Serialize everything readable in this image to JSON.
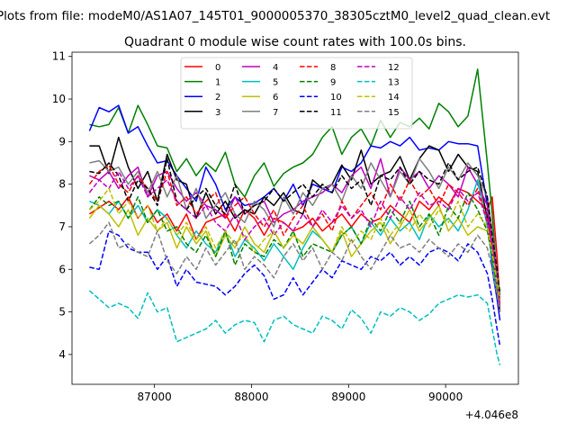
{
  "figure": {
    "suptitle": "Plots from file: modeM0/AS1A07_145T01_9000005370_38305cztM0_level2_quad_clean.evt"
  },
  "chart_data": {
    "type": "line",
    "title": "Quadrant 0 module wise count rates with 100.0s bins.",
    "xlabel": "",
    "ylabel": "",
    "x_offset_label": "+4.046e8",
    "xlim": [
      86150,
      90750
    ],
    "ylim": [
      3.3,
      11.1
    ],
    "xticks": [
      87000,
      88000,
      89000,
      90000
    ],
    "xtick_labels": [
      "87000",
      "88000",
      "89000",
      "90000"
    ],
    "yticks": [
      4,
      5,
      6,
      7,
      8,
      9,
      10,
      11
    ],
    "ytick_labels": [
      "4",
      "5",
      "6",
      "7",
      "8",
      "9",
      "10",
      "11"
    ],
    "legend": {
      "placement": "top-center",
      "columns": 4
    },
    "x": [
      86330,
      86430,
      86530,
      86630,
      86730,
      86830,
      86930,
      87030,
      87130,
      87230,
      87330,
      87430,
      87530,
      87630,
      87730,
      87830,
      87930,
      88030,
      88130,
      88230,
      88330,
      88430,
      88530,
      88630,
      88730,
      88830,
      88930,
      89030,
      89130,
      89230,
      89330,
      89430,
      89530,
      89630,
      89730,
      89830,
      89930,
      90030,
      90130,
      90230,
      90330,
      90430,
      90480,
      90530,
      90560
    ],
    "series": [
      {
        "name": "0",
        "color": "#ff0000",
        "dash": "solid",
        "values": [
          7.3,
          7.45,
          7.6,
          7.4,
          7.7,
          7.2,
          7.5,
          7.1,
          7.3,
          6.9,
          7.3,
          6.7,
          7.1,
          7.2,
          7.3,
          6.9,
          7.4,
          7.2,
          6.8,
          7.2,
          7.1,
          6.9,
          7.0,
          7.2,
          6.9,
          7.1,
          7.3,
          7.0,
          7.3,
          7.1,
          7.2,
          7.5,
          7.3,
          7.1,
          7.6,
          7.4,
          7.7,
          7.5,
          7.9,
          7.8,
          7.6,
          7.4,
          7.7,
          6.3,
          5.2
        ]
      },
      {
        "name": "1",
        "color": "#008000",
        "dash": "solid",
        "values": [
          9.4,
          9.35,
          9.4,
          9.8,
          9.2,
          9.85,
          9.4,
          8.9,
          8.85,
          8.3,
          8.6,
          8.2,
          8.5,
          8.3,
          8.75,
          8.0,
          7.7,
          8.2,
          8.5,
          7.95,
          8.25,
          8.4,
          8.5,
          8.7,
          9.1,
          9.35,
          8.7,
          9.1,
          9.3,
          8.9,
          9.5,
          9.1,
          9.45,
          9.35,
          9.55,
          9.3,
          9.9,
          9.7,
          9.35,
          9.6,
          10.7,
          8.5,
          7.3,
          5.8,
          5.5
        ]
      },
      {
        "name": "2",
        "color": "#0000ff",
        "dash": "solid",
        "values": [
          9.25,
          9.8,
          9.7,
          9.85,
          9.2,
          9.35,
          8.9,
          8.5,
          8.55,
          8.2,
          7.9,
          7.6,
          8.4,
          8.0,
          7.4,
          7.7,
          7.5,
          7.55,
          7.7,
          7.9,
          7.6,
          8.0,
          7.5,
          8.0,
          7.9,
          7.8,
          8.4,
          8.3,
          8.5,
          8.9,
          8.85,
          9.0,
          8.9,
          9.1,
          8.8,
          8.85,
          8.8,
          9.0,
          8.95,
          8.95,
          8.9,
          7.5,
          6.0,
          5.3,
          4.8
        ]
      },
      {
        "name": "3",
        "color": "#000000",
        "dash": "solid",
        "values": [
          8.9,
          8.9,
          8.25,
          9.1,
          8.4,
          7.9,
          8.3,
          7.6,
          8.7,
          8.1,
          8.0,
          7.2,
          7.8,
          7.3,
          7.6,
          7.2,
          7.4,
          7.3,
          7.7,
          7.5,
          7.8,
          7.4,
          7.3,
          8.1,
          7.9,
          8.0,
          8.45,
          8.1,
          8.8,
          8.0,
          8.2,
          8.3,
          8.65,
          8.1,
          8.6,
          8.9,
          8.8,
          8.3,
          8.7,
          8.4,
          8.3,
          7.2,
          6.4,
          5.7,
          5.0
        ]
      },
      {
        "name": "4",
        "color": "#bf00bf",
        "dash": "solid",
        "values": [
          8.2,
          8.1,
          8.3,
          7.9,
          8.2,
          8.4,
          7.7,
          8.2,
          8.3,
          7.9,
          7.6,
          7.8,
          7.5,
          7.4,
          7.2,
          7.7,
          7.3,
          7.5,
          7.6,
          7.1,
          7.3,
          7.4,
          7.6,
          7.7,
          7.8,
          8.0,
          7.8,
          8.2,
          8.4,
          7.9,
          8.6,
          7.7,
          8.4,
          8.1,
          8.3,
          7.9,
          8.2,
          8.0,
          7.7,
          8.4,
          8.0,
          7.5,
          6.6,
          5.8,
          5.4
        ]
      },
      {
        "name": "5",
        "color": "#00bfbf",
        "dash": "solid",
        "values": [
          7.6,
          7.5,
          7.3,
          7.6,
          7.2,
          7.5,
          7.1,
          7.4,
          7.2,
          6.8,
          6.5,
          6.9,
          6.6,
          6.4,
          6.9,
          6.3,
          6.7,
          6.5,
          6.2,
          6.6,
          6.3,
          6.0,
          6.5,
          6.9,
          6.7,
          6.4,
          6.8,
          7.0,
          6.6,
          7.1,
          6.8,
          7.2,
          6.9,
          7.1,
          6.7,
          7.3,
          7.0,
          7.2,
          6.9,
          7.4,
          8.1,
          7.0,
          6.2,
          5.5,
          5.1
        ]
      },
      {
        "name": "6",
        "color": "#bfbf00",
        "dash": "solid",
        "values": [
          7.2,
          7.5,
          7.3,
          7.0,
          7.4,
          6.8,
          7.2,
          6.9,
          7.1,
          6.5,
          7.0,
          6.6,
          6.9,
          6.3,
          6.8,
          6.5,
          7.0,
          6.6,
          6.4,
          6.9,
          6.5,
          6.8,
          6.6,
          7.0,
          6.7,
          6.4,
          6.9,
          6.3,
          6.6,
          6.9,
          7.1,
          6.6,
          7.0,
          7.4,
          6.9,
          7.2,
          7.5,
          6.9,
          7.2,
          6.8,
          7.0,
          6.9,
          6.4,
          5.6,
          5.2
        ]
      },
      {
        "name": "7",
        "color": "#7f7f7f",
        "dash": "solid",
        "values": [
          8.5,
          8.55,
          8.3,
          8.4,
          8.0,
          8.3,
          7.8,
          8.3,
          7.7,
          8.2,
          7.4,
          7.9,
          7.2,
          7.5,
          7.8,
          7.3,
          7.1,
          7.6,
          7.4,
          7.0,
          7.7,
          7.3,
          7.8,
          7.5,
          7.9,
          8.0,
          7.6,
          8.2,
          7.9,
          8.5,
          8.1,
          7.7,
          8.3,
          8.0,
          8.6,
          8.3,
          7.9,
          8.4,
          8.1,
          8.5,
          8.2,
          7.7,
          6.9,
          6.0,
          5.3
        ]
      },
      {
        "name": "8",
        "color": "#ff0000",
        "dash": "dashed",
        "values": [
          8.0,
          8.3,
          8.45,
          8.0,
          7.8,
          8.2,
          7.9,
          7.6,
          8.3,
          7.5,
          7.7,
          7.3,
          7.6,
          7.8,
          7.2,
          7.5,
          7.7,
          7.3,
          7.0,
          7.4,
          6.8,
          7.2,
          7.5,
          7.0,
          7.3,
          6.9,
          7.6,
          7.2,
          7.5,
          7.8,
          7.4,
          8.0,
          7.6,
          8.1,
          7.7,
          7.9,
          7.5,
          8.0,
          7.8,
          7.5,
          7.9,
          7.2,
          6.5,
          5.7,
          5.0
        ]
      },
      {
        "name": "9",
        "color": "#008000",
        "dash": "dashed",
        "values": [
          7.4,
          7.7,
          7.5,
          7.6,
          7.2,
          7.7,
          7.1,
          7.4,
          6.9,
          7.0,
          6.6,
          6.4,
          6.8,
          6.3,
          6.9,
          6.1,
          6.6,
          6.4,
          6.3,
          6.7,
          6.5,
          6.9,
          6.3,
          6.6,
          6.5,
          6.4,
          6.8,
          7.0,
          6.6,
          7.2,
          6.9,
          7.4,
          7.1,
          7.6,
          7.0,
          7.3,
          6.8,
          7.5,
          7.2,
          7.8,
          7.4,
          6.9,
          6.3,
          5.6,
          5.3
        ]
      },
      {
        "name": "10",
        "color": "#0000ff",
        "dash": "dashed",
        "values": [
          6.05,
          6.0,
          6.9,
          6.8,
          6.5,
          6.4,
          6.4,
          6.0,
          6.3,
          5.6,
          6.0,
          5.7,
          5.65,
          5.6,
          5.4,
          5.6,
          5.9,
          6.1,
          5.85,
          5.3,
          5.4,
          5.8,
          5.4,
          5.7,
          6.0,
          5.8,
          6.2,
          6.1,
          6.0,
          6.3,
          6.2,
          6.4,
          6.1,
          6.3,
          6.1,
          6.4,
          6.5,
          6.4,
          6.2,
          6.6,
          6.4,
          5.9,
          5.3,
          4.6,
          4.2
        ]
      },
      {
        "name": "11",
        "color": "#000000",
        "dash": "dashed",
        "values": [
          8.3,
          8.25,
          8.5,
          8.2,
          7.6,
          8.1,
          7.9,
          7.5,
          8.6,
          7.6,
          7.4,
          7.7,
          7.9,
          7.5,
          7.3,
          8.0,
          7.3,
          7.5,
          7.6,
          7.9,
          7.6,
          7.8,
          8.0,
          7.7,
          8.0,
          7.8,
          8.2,
          7.9,
          8.1,
          7.5,
          8.2,
          8.1,
          8.4,
          8.0,
          8.3,
          8.1,
          8.0,
          8.5,
          8.1,
          8.3,
          8.4,
          7.7,
          6.8,
          6.0,
          5.4
        ]
      },
      {
        "name": "12",
        "color": "#bf00bf",
        "dash": "dashed",
        "values": [
          7.8,
          8.1,
          7.9,
          8.3,
          7.9,
          8.2,
          7.7,
          7.9,
          8.1,
          7.6,
          7.4,
          7.2,
          7.5,
          7.1,
          6.9,
          7.3,
          6.7,
          7.0,
          7.2,
          6.8,
          7.1,
          6.9,
          7.3,
          7.0,
          7.4,
          7.1,
          7.5,
          7.2,
          7.4,
          7.0,
          7.6,
          7.2,
          7.7,
          7.4,
          7.8,
          7.5,
          7.6,
          7.4,
          7.9,
          7.6,
          7.8,
          7.1,
          6.5,
          5.8,
          5.1
        ]
      },
      {
        "name": "13",
        "color": "#00bfbf",
        "dash": "dashed",
        "values": [
          5.5,
          5.3,
          5.1,
          5.2,
          5.1,
          4.85,
          5.45,
          5.0,
          5.1,
          4.3,
          4.4,
          4.5,
          4.6,
          4.8,
          4.5,
          4.7,
          4.8,
          4.75,
          4.3,
          4.8,
          4.9,
          4.7,
          4.6,
          4.5,
          4.9,
          4.8,
          4.6,
          5.05,
          4.85,
          4.5,
          5.0,
          4.9,
          5.1,
          5.0,
          4.8,
          4.95,
          5.2,
          5.3,
          5.4,
          5.35,
          5.4,
          5.2,
          4.6,
          4.0,
          3.75
        ]
      },
      {
        "name": "14",
        "color": "#bfbf00",
        "dash": "dashed",
        "values": [
          7.4,
          7.6,
          7.9,
          7.3,
          7.6,
          7.2,
          7.5,
          6.9,
          7.2,
          6.8,
          7.1,
          6.7,
          7.0,
          6.5,
          6.9,
          6.6,
          6.8,
          6.4,
          6.7,
          6.9,
          6.5,
          6.8,
          6.6,
          7.0,
          6.7,
          6.4,
          7.0,
          6.6,
          6.9,
          6.7,
          7.2,
          6.8,
          7.1,
          6.9,
          7.3,
          7.0,
          7.4,
          7.1,
          7.6,
          7.0,
          7.3,
          7.0,
          6.4,
          5.7,
          5.3
        ]
      },
      {
        "name": "15",
        "color": "#7f7f7f",
        "dash": "dashed",
        "values": [
          6.6,
          6.8,
          7.1,
          6.5,
          6.6,
          6.4,
          6.3,
          6.9,
          6.2,
          5.9,
          6.3,
          6.0,
          6.5,
          6.1,
          6.4,
          6.7,
          6.0,
          6.3,
          6.1,
          5.8,
          6.3,
          6.6,
          6.2,
          6.5,
          6.0,
          6.4,
          6.2,
          6.7,
          6.3,
          6.0,
          6.4,
          6.8,
          6.5,
          6.6,
          6.4,
          6.7,
          6.5,
          6.3,
          6.6,
          6.4,
          6.8,
          6.5,
          6.0,
          5.4,
          5.0
        ]
      }
    ]
  }
}
